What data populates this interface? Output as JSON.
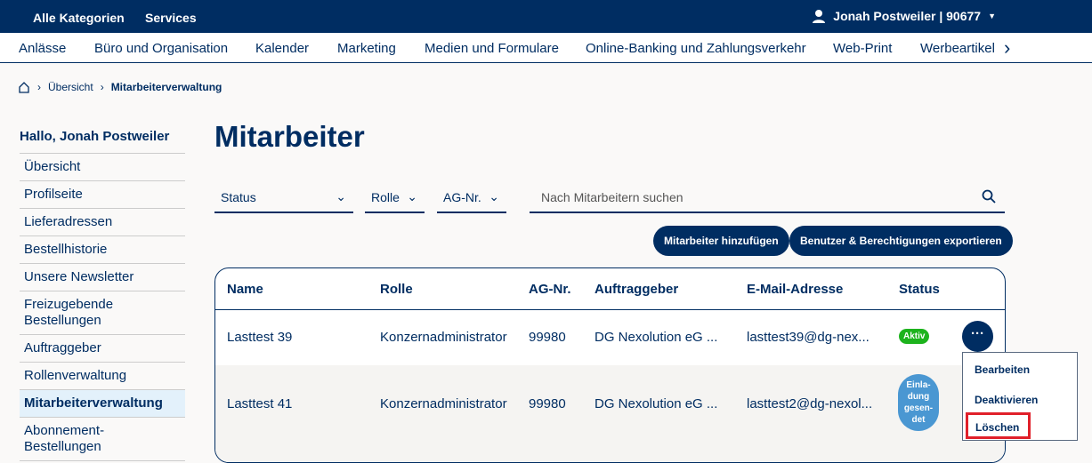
{
  "topbar": {
    "items": [
      "Alle Kategorien",
      "Services"
    ],
    "user": "Jonah Postweiler | 90677"
  },
  "categories": [
    "Anlässe",
    "Büro und Organisation",
    "Kalender",
    "Marketing",
    "Medien und Formulare",
    "Online-Banking und Zahlungsverkehr",
    "Web-Print",
    "Werbeartikel"
  ],
  "breadcrumb": [
    "Übersicht",
    "Mitarbeiterverwaltung"
  ],
  "sidebar": {
    "greeting": "Hallo, Jonah Postweiler",
    "items": [
      "Übersicht",
      "Profilseite",
      "Lieferadressen",
      "Bestellhistorie",
      "Unsere Newsletter",
      "Freizugebende Bestellungen",
      "Auftraggeber",
      "Rollenverwaltung",
      "Mitarbeiterverwaltung",
      "Abonnement-Bestellungen"
    ],
    "active": "Mitarbeiterverwaltung"
  },
  "page_title": "Mitarbeiter",
  "filters": {
    "status": "Status",
    "rolle": "Rolle",
    "ag": "AG-Nr.",
    "search_placeholder": "Nach Mitarbeitern suchen"
  },
  "buttons": {
    "add": "Mitarbeiter hinzufügen",
    "export": "Benutzer & Berechtigungen exportieren"
  },
  "table": {
    "headers": [
      "Name",
      "Rolle",
      "AG-Nr.",
      "Auftraggeber",
      "E-Mail-Adresse",
      "Status"
    ],
    "rows": [
      {
        "name": "Lasttest 39",
        "rolle": "Konzernadministrator",
        "ag": "99980",
        "auftraggeber": "DG Nexolution eG ...",
        "email": "lasttest39@dg-nex...",
        "status": "Aktiv"
      },
      {
        "name": "Lasttest 41",
        "rolle": "Konzernadministrator",
        "ag": "99980",
        "auftraggeber": "DG Nexolution eG ...",
        "email": "lasttest2@dg-nexol...",
        "status": "Einla-dung gesen-det"
      }
    ]
  },
  "menu": [
    "Bearbeiten",
    "Deaktivieren",
    "Löschen"
  ],
  "colors": {
    "brand": "#002d62",
    "active_badge": "#1db31d",
    "invite_badge": "#4a97d2",
    "highlight": "#e0202a"
  }
}
